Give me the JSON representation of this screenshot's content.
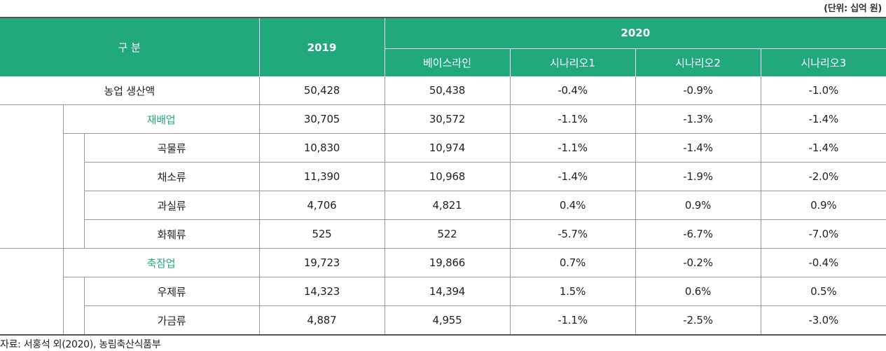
{
  "unit_note": "(단위: 십억 원)",
  "header": {
    "category": "구 분",
    "year_2019": "2019",
    "year_2020": "2020",
    "sub": [
      "베이스라인",
      "시나리오1",
      "시나리오2",
      "시나리오3"
    ]
  },
  "rows": [
    {
      "label": "농업 생산액",
      "v2019": "50,428",
      "base": "50,438",
      "s1": "-0.4%",
      "s2": "-0.9%",
      "s3": "-1.0%"
    },
    {
      "label": "재배업",
      "v2019": "30,705",
      "base": "30,572",
      "s1": "-1.1%",
      "s2": "-1.3%",
      "s3": "-1.4%"
    },
    {
      "label": "곡물류",
      "v2019": "10,830",
      "base": "10,974",
      "s1": "-1.1%",
      "s2": "-1.4%",
      "s3": "-1.4%"
    },
    {
      "label": "채소류",
      "v2019": "11,390",
      "base": "10,968",
      "s1": "-1.4%",
      "s2": "-1.9%",
      "s3": "-2.0%"
    },
    {
      "label": "과실류",
      "v2019": "4,706",
      "base": "4,821",
      "s1": "0.4%",
      "s2": "0.9%",
      "s3": "0.9%"
    },
    {
      "label": "화훼류",
      "v2019": "525",
      "base": "522",
      "s1": "-5.7%",
      "s2": "-6.7%",
      "s3": "-7.0%"
    },
    {
      "label": "축잠업",
      "v2019": "19,723",
      "base": "19,866",
      "s1": "0.7%",
      "s2": "-0.2%",
      "s3": "-0.4%"
    },
    {
      "label": "우제류",
      "v2019": "14,323",
      "base": "14,394",
      "s1": "1.5%",
      "s2": "0.6%",
      "s3": "0.5%"
    },
    {
      "label": "가금류",
      "v2019": "4,887",
      "base": "4,955",
      "s1": "-1.1%",
      "s2": "-2.5%",
      "s3": "-3.0%"
    }
  ],
  "source": "자료: 서홍석 외(2020), 농림축산식품부",
  "colors": {
    "header_bg": "#21a87d",
    "accent_text": "#21a87d"
  }
}
